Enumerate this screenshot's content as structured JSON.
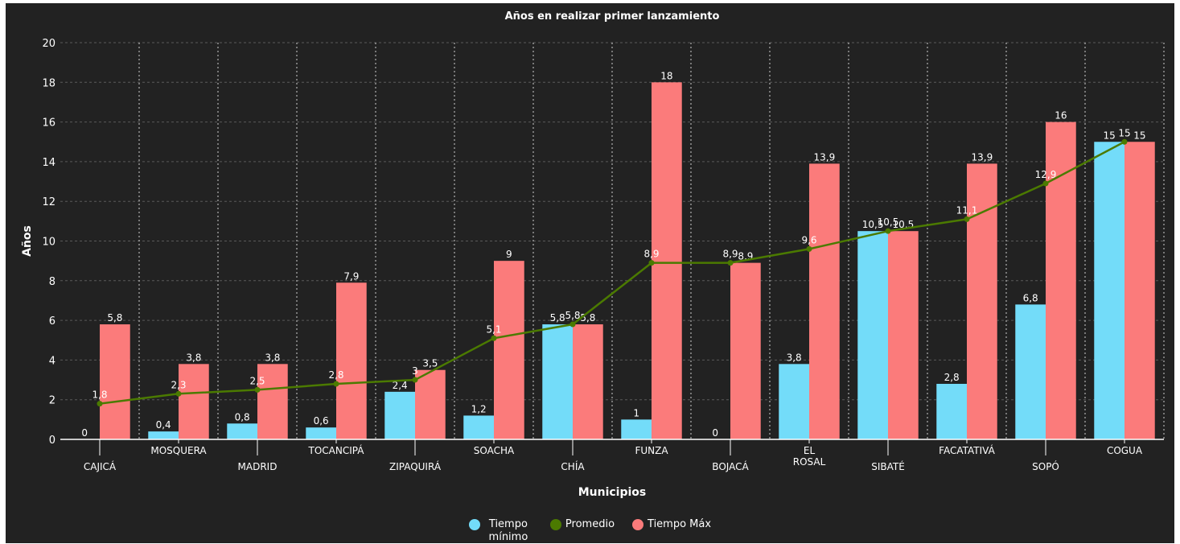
{
  "chart_data": {
    "type": "bar",
    "title": "Años en realizar primer lanzamiento",
    "xlabel": "Municipios",
    "ylabel": "Años",
    "ylim": [
      0,
      20
    ],
    "yticks": [
      "0",
      "2",
      "4",
      "6",
      "8",
      "10",
      "12",
      "14",
      "16",
      "18",
      "20"
    ],
    "categories": [
      "CAJICÁ",
      "MOSQUERA",
      "MADRID",
      "TOCANCIPÁ",
      "ZIPAQUIRÁ",
      "SOACHA",
      "CHÍA",
      "FUNZA",
      "BOJACÁ",
      "EL ROSAL",
      "SIBATÉ",
      "FACATATIVÁ",
      "SOPÓ",
      "COGUA"
    ],
    "series": [
      {
        "name": "Tiempo mínimo",
        "kind": "bar",
        "color": "#73dcf9",
        "values": [
          0,
          0.4,
          0.8,
          0.6,
          2.4,
          1.2,
          5.8,
          1,
          0,
          3.8,
          10.5,
          2.8,
          6.8,
          15
        ],
        "labels": [
          "0",
          "0,4",
          "0,8",
          "0,6",
          "2,4",
          "1,2",
          "5,8",
          "1",
          "0",
          "3,8",
          "10,5",
          "2,8",
          "6,8",
          "15"
        ]
      },
      {
        "name": "Promedio",
        "kind": "line",
        "color": "#4b7a00",
        "values": [
          1.8,
          2.3,
          2.5,
          2.8,
          3,
          5.1,
          5.8,
          8.9,
          8.9,
          9.6,
          10.5,
          11.1,
          12.9,
          15
        ],
        "labels": [
          "1,8",
          "2,3",
          "2,5",
          "2,8",
          "3",
          "5,1",
          "5,8",
          "8,9",
          "8,9",
          "9,6",
          "10,5",
          "11,1",
          "12,9",
          "15"
        ]
      },
      {
        "name": "Tiempo Máx",
        "kind": "bar",
        "color": "#fb7b7b",
        "values": [
          5.8,
          3.8,
          3.8,
          7.9,
          3.5,
          9,
          5.8,
          18,
          8.9,
          13.9,
          10.5,
          13.9,
          16,
          15
        ],
        "labels": [
          "5,8",
          "3,8",
          "3,8",
          "7,9",
          "3,5",
          "9",
          "5,8",
          "18",
          "8,9",
          "13,9",
          "10,5",
          "13,9",
          "16",
          "15"
        ]
      }
    ],
    "legend": {
      "position": "bottom",
      "items": [
        {
          "label": "Tiempo mínimo",
          "color": "#73dcf9"
        },
        {
          "label": "Promedio",
          "color": "#4b7a00"
        },
        {
          "label": "Tiempo Máx",
          "color": "#fb7b7b"
        }
      ]
    },
    "grid": true
  }
}
